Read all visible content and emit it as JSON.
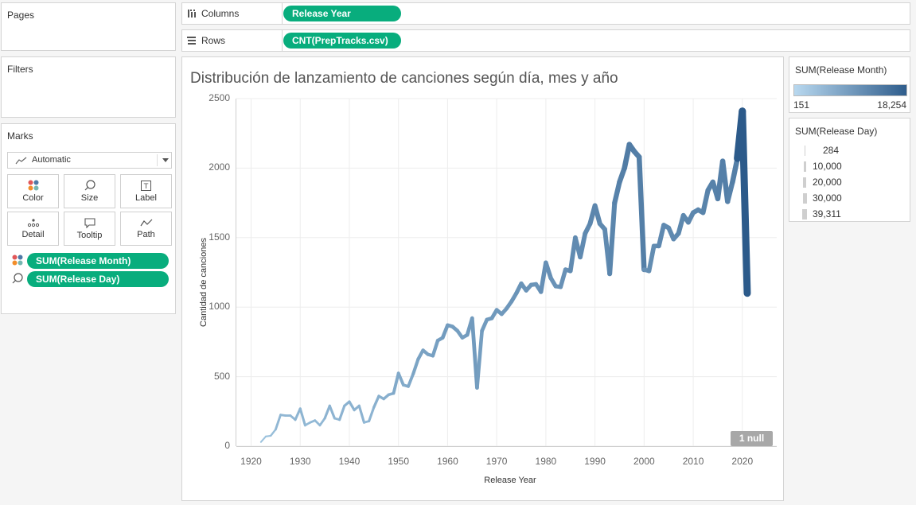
{
  "pages": {
    "title": "Pages"
  },
  "filters": {
    "title": "Filters"
  },
  "marks": {
    "title": "Marks",
    "dropdown": "Automatic",
    "buttons": [
      "Color",
      "Size",
      "Label",
      "Detail",
      "Tooltip",
      "Path"
    ],
    "fields": [
      {
        "label": "SUM(Release Month)",
        "icon": "color-dots-icon"
      },
      {
        "label": "SUM(Release Day)",
        "icon": "size-lasso-icon"
      }
    ]
  },
  "shelves": {
    "columns": {
      "label": "Columns",
      "pill": "Release Year"
    },
    "rows": {
      "label": "Rows",
      "pill": "CNT(PrepTracks.csv)"
    }
  },
  "colors": {
    "accent": "#08ad7d",
    "line_light": "#a6cbe4",
    "line_dark": "#2f5d8c"
  },
  "legends": {
    "color": {
      "title": "SUM(Release Month)",
      "min": "151",
      "max": "18,254"
    },
    "size": {
      "title": "SUM(Release Day)",
      "items": [
        "284",
        "10,000",
        "20,000",
        "30,000",
        "39,311"
      ]
    }
  },
  "null_badge": "1 null",
  "chart_data": {
    "type": "line",
    "title": "Distribución de lanzamiento de canciones según día, mes y año",
    "xlabel": "Release Year",
    "ylabel": "Cantidad de canciones",
    "xlim": [
      1917,
      2027
    ],
    "ylim": [
      0,
      2500
    ],
    "xticks": [
      1920,
      1930,
      1940,
      1950,
      1960,
      1970,
      1980,
      1990,
      2000,
      2010,
      2020
    ],
    "yticks": [
      0,
      500,
      1000,
      1500,
      2000,
      2500
    ],
    "grid": true,
    "series": [
      {
        "x": [
          1922,
          1923,
          1924,
          1925,
          1926,
          1927,
          1928,
          1929,
          1930,
          1931,
          1932,
          1933,
          1934,
          1935,
          1936,
          1937,
          1938,
          1939,
          1940,
          1941,
          1942,
          1943,
          1944,
          1945,
          1946,
          1947,
          1948,
          1949,
          1950,
          1951,
          1952,
          1953,
          1954,
          1955,
          1956,
          1957,
          1958,
          1959,
          1960,
          1961,
          1962,
          1963,
          1964,
          1965,
          1966,
          1967,
          1968,
          1969,
          1970,
          1971,
          1972,
          1973,
          1974,
          1975,
          1976,
          1977,
          1978,
          1979,
          1980,
          1981,
          1982,
          1983,
          1984,
          1985,
          1986,
          1987,
          1988,
          1989,
          1990,
          1991,
          1992,
          1993,
          1994,
          1995,
          1996,
          1997,
          1998,
          1999,
          2000,
          2001,
          2002,
          2003,
          2004,
          2005,
          2006,
          2007,
          2008,
          2009,
          2010,
          2011,
          2012,
          2013,
          2014,
          2015,
          2016,
          2017,
          2018,
          2019,
          2020,
          2021
        ],
        "y": [
          30,
          70,
          75,
          120,
          225,
          220,
          220,
          190,
          270,
          150,
          170,
          185,
          150,
          200,
          290,
          200,
          190,
          290,
          320,
          260,
          290,
          170,
          180,
          280,
          360,
          340,
          370,
          380,
          525,
          440,
          430,
          520,
          625,
          690,
          660,
          650,
          760,
          780,
          870,
          860,
          830,
          780,
          800,
          920,
          420,
          830,
          910,
          920,
          980,
          950,
          990,
          1040,
          1100,
          1170,
          1120,
          1160,
          1165,
          1110,
          1320,
          1210,
          1150,
          1145,
          1270,
          1260,
          1500,
          1360,
          1530,
          1600,
          1730,
          1600,
          1560,
          1240,
          1750,
          1900,
          2000,
          2170,
          2120,
          2080,
          1270,
          1260,
          1440,
          1440,
          1590,
          1570,
          1490,
          1530,
          1660,
          1610,
          1680,
          1700,
          1680,
          1840,
          1900,
          1780,
          2050,
          1760,
          1900,
          2070,
          2410,
          1100
        ],
        "color_value": [
          160,
          300,
          330,
          520,
          900,
          900,
          900,
          800,
          1100,
          700,
          750,
          800,
          700,
          850,
          1200,
          850,
          820,
          1200,
          1300,
          1100,
          1200,
          750,
          800,
          1150,
          1500,
          1400,
          1550,
          1600,
          2200,
          1900,
          1850,
          2200,
          2700,
          3000,
          2900,
          2800,
          3300,
          3400,
          3800,
          3700,
          3600,
          3400,
          3500,
          4000,
          1800,
          3600,
          4000,
          4000,
          4300,
          4100,
          4300,
          4500,
          4800,
          5100,
          4900,
          5000,
          5100,
          4800,
          5800,
          5300,
          5000,
          5000,
          5500,
          5500,
          6500,
          5900,
          6700,
          7000,
          7500,
          7000,
          6800,
          5400,
          7600,
          8300,
          8700,
          9500,
          9200,
          9000,
          5500,
          5500,
          6300,
          6300,
          6900,
          6800,
          6500,
          6700,
          7200,
          7000,
          7300,
          7400,
          7300,
          8000,
          8300,
          7800,
          8900,
          7700,
          8300,
          9000,
          18254,
          151
        ],
        "size_value": [
          284,
          600,
          650,
          1000,
          1800,
          1800,
          1800,
          1600,
          2200,
          1400,
          1500,
          1600,
          1400,
          1700,
          2400,
          1700,
          1650,
          2400,
          2600,
          2200,
          2400,
          1500,
          1600,
          2300,
          3000,
          2800,
          3100,
          3200,
          4400,
          3800,
          3700,
          4400,
          5400,
          6000,
          5800,
          5600,
          6600,
          6800,
          7600,
          7400,
          7200,
          6800,
          7000,
          8000,
          3600,
          7200,
          8000,
          8000,
          8600,
          8200,
          8600,
          9000,
          9600,
          10200,
          9800,
          10000,
          10200,
          9600,
          11600,
          10600,
          10000,
          10000,
          11000,
          11000,
          13000,
          11800,
          13400,
          14000,
          15000,
          14000,
          13600,
          10800,
          15200,
          16600,
          17400,
          19000,
          18400,
          18000,
          11000,
          11000,
          12600,
          12600,
          13800,
          13600,
          13000,
          13400,
          14400,
          14000,
          14600,
          14800,
          14600,
          16000,
          16600,
          15600,
          17800,
          15400,
          16600,
          18000,
          39311,
          9600
        ]
      }
    ]
  }
}
